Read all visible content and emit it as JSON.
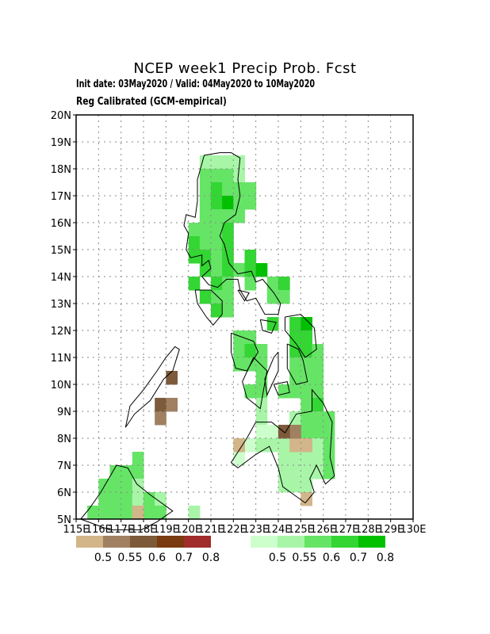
{
  "header": {
    "title": "NCEP week1 Precip Prob. Fcst",
    "line1": "Init date: 03May2020 / Valid: 04May2020 to 10May2020",
    "line2": "Reg Calibrated (GCM-empirical)"
  },
  "map": {
    "lon_range": [
      115,
      130
    ],
    "lat_range": [
      5,
      20
    ],
    "grid": true,
    "lon_ticks": [
      "115E",
      "116E",
      "117E",
      "118E",
      "119E",
      "120E",
      "121E",
      "122E",
      "123E",
      "124E",
      "125E",
      "126E",
      "127E",
      "128E",
      "129E",
      "130E"
    ],
    "lat_ticks": [
      "5N",
      "6N",
      "7N",
      "8N",
      "9N",
      "10N",
      "11N",
      "12N",
      "13N",
      "14N",
      "15N",
      "16N",
      "17N",
      "18N",
      "19N",
      "20N"
    ]
  },
  "legend": {
    "dry": {
      "labels": [
        "0.5",
        "0.55",
        "0.6",
        "0.7",
        "0.8"
      ],
      "colors": [
        "#d2b589",
        "#a08060",
        "#7d5a3a",
        "#7a3b10",
        "#a02c2c"
      ]
    },
    "wet": {
      "labels": [
        "0.5",
        "0.55",
        "0.6",
        "0.7",
        "0.8"
      ],
      "colors": [
        "#ccffcc",
        "#a8f5a8",
        "#66e466",
        "#33d633",
        "#00c000"
      ]
    }
  },
  "cells": {
    "cell_size_deg": 0.5,
    "wet": [
      [
        120.5,
        18,
        2
      ],
      [
        121,
        18,
        2
      ],
      [
        121.5,
        18,
        2
      ],
      [
        122,
        18,
        2
      ],
      [
        120.5,
        17.5,
        3
      ],
      [
        121,
        17.5,
        3
      ],
      [
        121.5,
        17.5,
        3
      ],
      [
        122,
        17.5,
        2
      ],
      [
        120.5,
        17,
        3
      ],
      [
        121,
        17,
        4
      ],
      [
        121.5,
        17,
        3
      ],
      [
        122,
        17,
        3
      ],
      [
        122.5,
        17,
        3
      ],
      [
        120.5,
        16.5,
        3
      ],
      [
        121,
        16.5,
        4
      ],
      [
        121.5,
        16.5,
        5
      ],
      [
        122,
        16.5,
        3
      ],
      [
        122.5,
        16.5,
        3
      ],
      [
        120.5,
        16,
        3
      ],
      [
        121,
        16,
        3
      ],
      [
        121.5,
        16,
        3
      ],
      [
        122,
        16,
        3
      ],
      [
        120,
        15.5,
        3
      ],
      [
        120.5,
        15.5,
        3
      ],
      [
        121,
        15.5,
        3
      ],
      [
        121.5,
        15.5,
        4
      ],
      [
        120,
        15,
        4
      ],
      [
        120.5,
        15,
        3
      ],
      [
        121,
        15,
        3
      ],
      [
        121.5,
        15,
        4
      ],
      [
        120,
        14.5,
        4
      ],
      [
        120.5,
        14.5,
        4
      ],
      [
        121,
        14.5,
        3
      ],
      [
        121.5,
        14.5,
        4
      ],
      [
        122.5,
        14.5,
        4
      ],
      [
        120.5,
        14,
        4
      ],
      [
        121,
        14,
        3
      ],
      [
        121.5,
        14,
        4
      ],
      [
        122,
        14,
        3
      ],
      [
        122.5,
        14,
        4
      ],
      [
        123,
        14,
        5
      ],
      [
        120,
        13.5,
        4
      ],
      [
        121,
        13.5,
        4
      ],
      [
        121.5,
        13.5,
        3
      ],
      [
        122.5,
        13.5,
        3
      ],
      [
        123.5,
        13.5,
        3
      ],
      [
        124,
        13.5,
        4
      ],
      [
        120.5,
        13,
        4
      ],
      [
        121,
        13,
        3
      ],
      [
        121.5,
        13,
        3
      ],
      [
        123.5,
        13,
        3
      ],
      [
        124,
        13,
        3
      ],
      [
        121,
        12.5,
        4
      ],
      [
        121.5,
        12.5,
        3
      ],
      [
        123.5,
        12,
        4
      ],
      [
        124.5,
        12,
        4
      ],
      [
        125,
        12,
        5
      ],
      [
        122,
        11.5,
        3
      ],
      [
        122.5,
        11.5,
        3
      ],
      [
        124.5,
        11.5,
        4
      ],
      [
        125,
        11.5,
        4
      ],
      [
        122,
        11,
        3
      ],
      [
        122.5,
        11,
        4
      ],
      [
        123,
        11,
        3
      ],
      [
        124.5,
        11,
        4
      ],
      [
        125,
        11,
        4
      ],
      [
        125.5,
        11,
        3
      ],
      [
        122,
        10.5,
        3
      ],
      [
        122.5,
        10.5,
        3
      ],
      [
        123,
        10.5,
        3
      ],
      [
        124.5,
        10.5,
        3
      ],
      [
        125,
        10.5,
        3
      ],
      [
        125.5,
        10.5,
        3
      ],
      [
        123,
        10,
        3
      ],
      [
        124.5,
        10,
        3
      ],
      [
        125,
        10,
        3
      ],
      [
        125.5,
        10,
        3
      ],
      [
        122.5,
        9.5,
        3
      ],
      [
        123,
        9.5,
        3
      ],
      [
        124,
        9.5,
        3
      ],
      [
        124.5,
        9.5,
        3
      ],
      [
        125,
        9.5,
        3
      ],
      [
        125.5,
        9.5,
        3
      ],
      [
        123,
        9,
        2
      ],
      [
        125,
        9,
        3
      ],
      [
        125.5,
        9,
        4
      ],
      [
        123,
        8.5,
        2
      ],
      [
        124.5,
        8.5,
        2
      ],
      [
        125,
        8.5,
        3
      ],
      [
        125.5,
        8.5,
        3
      ],
      [
        126,
        8.5,
        3
      ],
      [
        123,
        8,
        1
      ],
      [
        123.5,
        8,
        1
      ],
      [
        124,
        8,
        1
      ],
      [
        125,
        8,
        3
      ],
      [
        125.5,
        8,
        3
      ],
      [
        126,
        8,
        3
      ],
      [
        122.5,
        7.5,
        1
      ],
      [
        123,
        7.5,
        2
      ],
      [
        123.5,
        7.5,
        2
      ],
      [
        124,
        7.5,
        2
      ],
      [
        124.5,
        7.5,
        1
      ],
      [
        125,
        7.5,
        1
      ],
      [
        125.5,
        7.5,
        2
      ],
      [
        126,
        7.5,
        3
      ],
      [
        122,
        7,
        1
      ],
      [
        124,
        7,
        2
      ],
      [
        124.5,
        7,
        2
      ],
      [
        125,
        7,
        2
      ],
      [
        125.5,
        7,
        2
      ],
      [
        126,
        7,
        3
      ],
      [
        124,
        6.5,
        2
      ],
      [
        124.5,
        6.5,
        2
      ],
      [
        125,
        6.5,
        2
      ],
      [
        125.5,
        6.5,
        2
      ],
      [
        126,
        6.5,
        3
      ],
      [
        124,
        6,
        2
      ],
      [
        124.5,
        6,
        2
      ],
      [
        125,
        6,
        2
      ],
      [
        116.5,
        6.5,
        3
      ],
      [
        117,
        6.5,
        3
      ],
      [
        117.5,
        6.5,
        3
      ],
      [
        117.5,
        7,
        3
      ],
      [
        116,
        6,
        3
      ],
      [
        116.5,
        6,
        3
      ],
      [
        117,
        6,
        3
      ],
      [
        117.5,
        6,
        2
      ],
      [
        116,
        5.5,
        3
      ],
      [
        116.5,
        5.5,
        3
      ],
      [
        117,
        5.5,
        3
      ],
      [
        117.5,
        5.5,
        2
      ],
      [
        118,
        5.5,
        3
      ],
      [
        118.5,
        5.5,
        2
      ],
      [
        115.5,
        5,
        3
      ],
      [
        116,
        5,
        3
      ],
      [
        116.5,
        5,
        3
      ],
      [
        117,
        5,
        3
      ],
      [
        117.5,
        5,
        2
      ],
      [
        118,
        5,
        3
      ],
      [
        118.5,
        5,
        3
      ],
      [
        120,
        5,
        2
      ]
    ],
    "dry": [
      [
        125,
        7.5,
        1
      ],
      [
        124.5,
        7.5,
        1
      ],
      [
        122,
        7.5,
        1
      ],
      [
        125,
        5.5,
        1
      ],
      [
        117.5,
        5,
        1
      ],
      [
        124.5,
        8,
        2
      ],
      [
        124,
        8,
        3
      ],
      [
        119,
        10,
        3
      ],
      [
        119,
        9,
        2
      ],
      [
        118.5,
        8.5,
        2
      ],
      [
        118.5,
        9,
        3
      ]
    ]
  },
  "coast": {
    "luzon": [
      [
        121.9,
        18.6
      ],
      [
        121.4,
        18.6
      ],
      [
        120.7,
        18.5
      ],
      [
        120.6,
        18.2
      ],
      [
        120.4,
        17.6
      ],
      [
        120.4,
        16.8
      ],
      [
        120.3,
        16.2
      ],
      [
        119.9,
        16.3
      ],
      [
        119.8,
        15.9
      ],
      [
        120.0,
        15.6
      ],
      [
        119.9,
        15.0
      ],
      [
        120.1,
        14.7
      ],
      [
        120.6,
        14.8
      ],
      [
        120.6,
        14.4
      ],
      [
        120.9,
        14.6
      ],
      [
        121.0,
        14.3
      ],
      [
        120.6,
        14.0
      ],
      [
        120.9,
        13.7
      ],
      [
        121.3,
        13.6
      ],
      [
        121.7,
        13.9
      ],
      [
        122.2,
        13.9
      ],
      [
        122.3,
        13.5
      ],
      [
        122.6,
        13.1
      ],
      [
        123.0,
        13.2
      ],
      [
        123.4,
        12.6
      ],
      [
        124.0,
        12.6
      ],
      [
        124.1,
        13.0
      ],
      [
        123.8,
        13.4
      ],
      [
        123.3,
        13.9
      ],
      [
        123.0,
        13.8
      ],
      [
        122.8,
        14.2
      ],
      [
        122.2,
        14.1
      ],
      [
        121.8,
        14.5
      ],
      [
        121.6,
        15.2
      ],
      [
        121.4,
        15.5
      ],
      [
        121.6,
        16.0
      ],
      [
        122.1,
        16.3
      ],
      [
        122.3,
        17.0
      ],
      [
        122.2,
        17.6
      ],
      [
        122.3,
        18.4
      ],
      [
        121.9,
        18.6
      ]
    ],
    "mindoro": [
      [
        120.3,
        13.5
      ],
      [
        121.0,
        13.5
      ],
      [
        121.5,
        13.1
      ],
      [
        121.5,
        12.6
      ],
      [
        121.1,
        12.2
      ],
      [
        120.8,
        12.5
      ],
      [
        120.4,
        13.0
      ],
      [
        120.3,
        13.5
      ]
    ],
    "palawan": [
      [
        117.2,
        8.4
      ],
      [
        117.6,
        8.9
      ],
      [
        118.3,
        9.4
      ],
      [
        118.9,
        10.2
      ],
      [
        119.3,
        10.5
      ],
      [
        119.6,
        11.3
      ],
      [
        119.4,
        11.4
      ],
      [
        119.0,
        11.0
      ],
      [
        118.6,
        10.5
      ],
      [
        118.0,
        9.8
      ],
      [
        117.4,
        9.2
      ],
      [
        117.2,
        8.4
      ]
    ],
    "panay": [
      [
        121.9,
        11.9
      ],
      [
        122.9,
        11.6
      ],
      [
        123.1,
        11.2
      ],
      [
        122.6,
        10.5
      ],
      [
        122.1,
        10.6
      ],
      [
        121.9,
        11.2
      ],
      [
        121.9,
        11.9
      ]
    ],
    "negros": [
      [
        122.9,
        11.0
      ],
      [
        123.5,
        10.5
      ],
      [
        123.3,
        9.6
      ],
      [
        123.2,
        9.1
      ],
      [
        122.6,
        9.5
      ],
      [
        122.4,
        10.1
      ],
      [
        122.9,
        11.0
      ]
    ],
    "cebu": [
      [
        124.0,
        11.2
      ],
      [
        124.0,
        10.5
      ],
      [
        123.5,
        9.6
      ],
      [
        123.4,
        10.2
      ],
      [
        123.8,
        11.0
      ],
      [
        124.0,
        11.2
      ]
    ],
    "bohol": [
      [
        123.8,
        10.0
      ],
      [
        124.4,
        10.1
      ],
      [
        124.5,
        9.7
      ],
      [
        124.0,
        9.6
      ],
      [
        123.8,
        10.0
      ]
    ],
    "samar": [
      [
        124.3,
        12.5
      ],
      [
        125.0,
        12.6
      ],
      [
        125.6,
        12.1
      ],
      [
        125.7,
        11.3
      ],
      [
        125.2,
        11.0
      ],
      [
        124.8,
        11.5
      ],
      [
        124.3,
        12.0
      ],
      [
        124.3,
        12.5
      ]
    ],
    "leyte": [
      [
        124.4,
        11.5
      ],
      [
        124.9,
        11.3
      ],
      [
        125.1,
        10.9
      ],
      [
        125.3,
        10.1
      ],
      [
        124.8,
        10.0
      ],
      [
        124.4,
        10.6
      ],
      [
        124.4,
        11.5
      ]
    ],
    "masbate": [
      [
        123.2,
        12.4
      ],
      [
        123.9,
        12.3
      ],
      [
        123.7,
        11.9
      ],
      [
        123.3,
        12.0
      ],
      [
        123.2,
        12.4
      ]
    ],
    "mindanao": [
      [
        123.0,
        8.6
      ],
      [
        123.7,
        8.6
      ],
      [
        124.3,
        8.2
      ],
      [
        124.8,
        8.9
      ],
      [
        125.5,
        9.0
      ],
      [
        125.5,
        9.8
      ],
      [
        126.0,
        9.3
      ],
      [
        126.4,
        8.6
      ],
      [
        126.3,
        7.3
      ],
      [
        126.5,
        6.6
      ],
      [
        126.1,
        6.3
      ],
      [
        125.7,
        7.0
      ],
      [
        125.4,
        6.5
      ],
      [
        125.6,
        6.0
      ],
      [
        125.2,
        5.6
      ],
      [
        124.2,
        6.2
      ],
      [
        124.0,
        6.9
      ],
      [
        123.6,
        7.7
      ],
      [
        123.0,
        7.4
      ],
      [
        122.2,
        6.9
      ],
      [
        121.9,
        7.1
      ],
      [
        122.6,
        8.0
      ],
      [
        123.0,
        8.6
      ]
    ],
    "borneo": [
      [
        115.2,
        5.0
      ],
      [
        115.6,
        5.4
      ],
      [
        116.1,
        6.0
      ],
      [
        116.8,
        7.0
      ],
      [
        117.3,
        6.9
      ],
      [
        117.7,
        6.3
      ],
      [
        118.3,
        5.9
      ],
      [
        119.3,
        5.3
      ],
      [
        118.6,
        4.9
      ],
      [
        117.9,
        4.6
      ],
      [
        116.5,
        4.6
      ],
      [
        115.2,
        5.0
      ]
    ],
    "mindoro_small": [
      [
        122.2,
        13.5
      ],
      [
        122.7,
        13.4
      ],
      [
        122.5,
        13.1
      ],
      [
        122.2,
        13.5
      ]
    ]
  }
}
